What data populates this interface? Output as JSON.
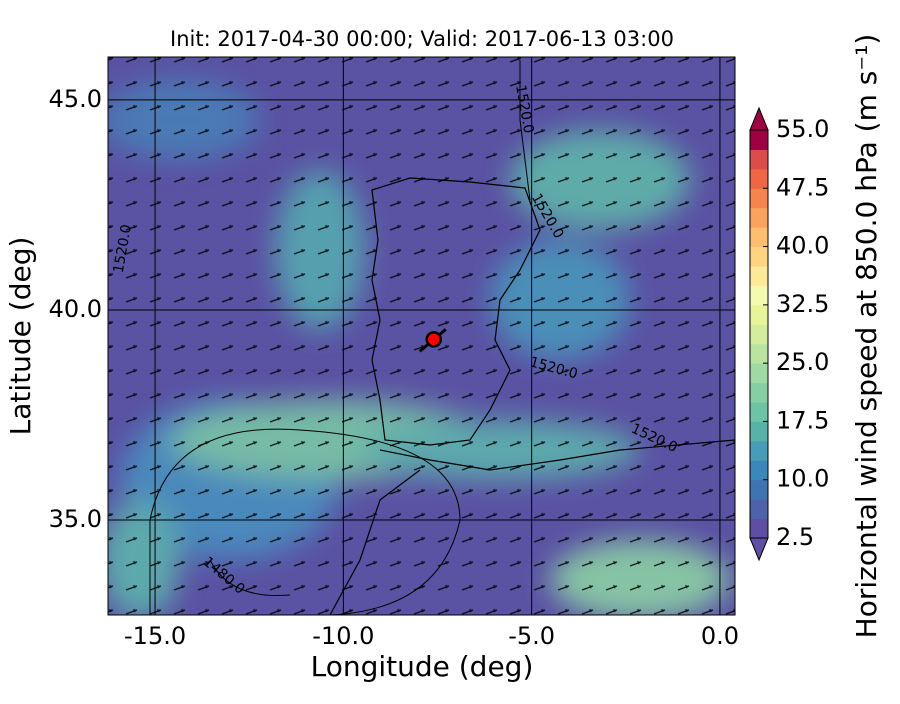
{
  "chart_data": {
    "type": "map",
    "title": "Init: 2017-04-30 00:00; Valid: 2017-06-13 03:00",
    "x_label": "Longitude (deg)",
    "y_label": "Latitude (deg)",
    "xlim": [
      -16.25,
      0.4
    ],
    "ylim": [
      32.74,
      46.02
    ],
    "xticks": [
      {
        "value": -15,
        "label": "-15.0"
      },
      {
        "value": -10,
        "label": "-10.0"
      },
      {
        "value": -5,
        "label": "-5.0"
      },
      {
        "value": 0,
        "label": "0.0"
      }
    ],
    "yticks": [
      {
        "value": 35,
        "label": "35.0"
      },
      {
        "value": 40,
        "label": "40.0"
      },
      {
        "value": 45,
        "label": "45.0"
      }
    ],
    "grid": true,
    "annotations": [
      "1520.0",
      "1520.0",
      "1520.0",
      "1520.0",
      "1520.0",
      "1480.0"
    ],
    "point": {
      "x": -7.6,
      "y": 39.3,
      "color": "#ff0000"
    },
    "colorbar": {
      "label": "Horizontal wind speed at 850.0 hPa (m s⁻¹)",
      "lim": [
        2.5,
        55
      ],
      "ticks": [
        2.5,
        {
          "value": 10,
          "label": "10.0"
        },
        17.5,
        {
          "value": 25,
          "label": "25.0"
        },
        32.5,
        {
          "value": 40,
          "label": "40.0"
        },
        47.5,
        {
          "value": 55,
          "label": "55.0"
        }
      ],
      "colors": [
        "#5e4fa2",
        "#4e62ab",
        "#3f74b2",
        "#3a88b9",
        "#479db5",
        "#59b2aa",
        "#6cc4a5",
        "#86cfa5",
        "#a0d9a4",
        "#bae3a1",
        "#d3ed9c",
        "#e7f59a",
        "#f5fab1",
        "#fee999",
        "#fed481",
        "#fdbe6f",
        "#fba35e",
        "#f7844e",
        "#ef6645",
        "#dc4c4b",
        "#9e0142"
      ]
    }
  }
}
